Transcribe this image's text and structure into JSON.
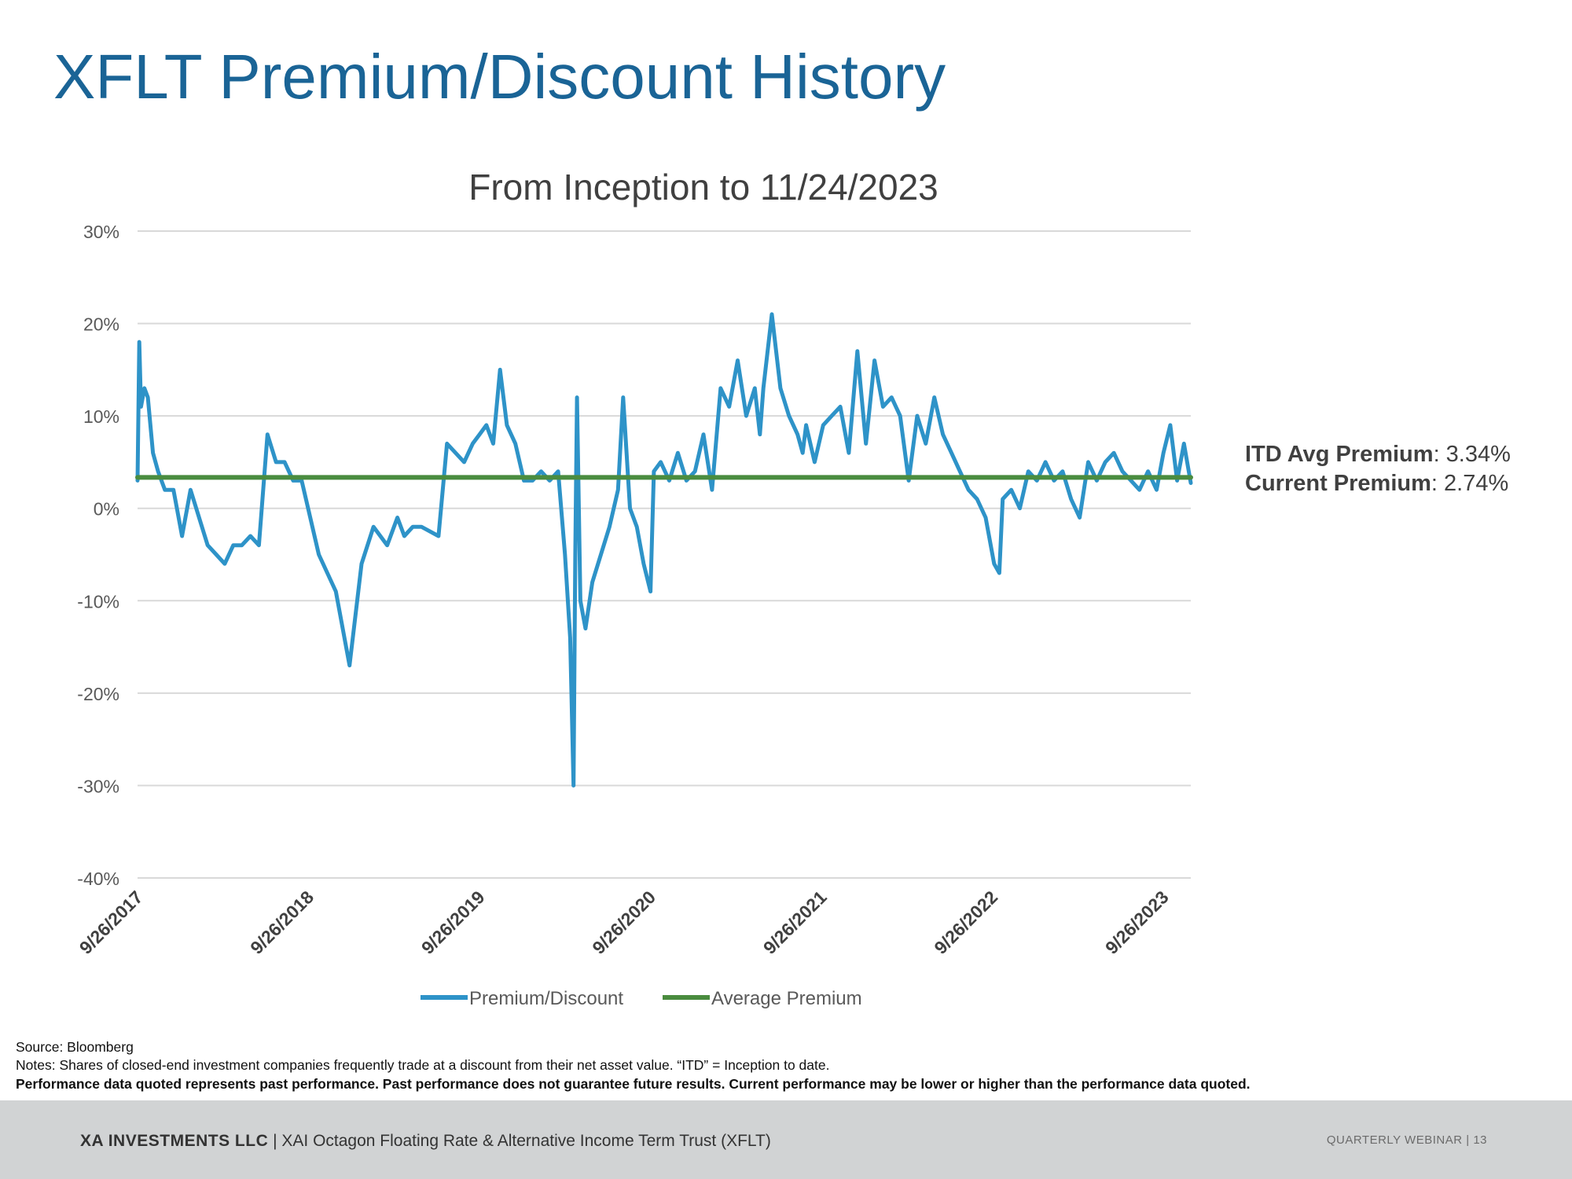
{
  "slide": {
    "title": "XFLT Premium/Discount History"
  },
  "summary": {
    "avg_label": "ITD Avg Premium",
    "avg_value": ": 3.34%",
    "current_label": "Current Premium",
    "current_value": ": 2.74%"
  },
  "notes": {
    "source": "Source: Bloomberg",
    "notes": "Notes: Shares of closed-end investment companies frequently trade at a discount from their net asset value. “ITD” = Inception to date.",
    "performance": "Performance data quoted represents past performance. Past performance does not guarantee future results. Current performance may be lower or higher than the performance data quoted."
  },
  "footer": {
    "company": "XA INVESTMENTS LLC",
    "separator": "|",
    "fund": "XAI Octagon Floating Rate & Alternative Income Term Trust (XFLT)",
    "webinar": "QUARTERLY WEBINAR",
    "page_separator": "|",
    "page": "13"
  },
  "chart_data": {
    "type": "line",
    "title": "From Inception to 11/24/2023",
    "xlabel": "",
    "ylabel": "",
    "x_range": [
      2017.74,
      2023.9
    ],
    "ylim": [
      -40,
      30
    ],
    "y_ticks": [
      30,
      20,
      10,
      0,
      -10,
      -20,
      -30,
      -40
    ],
    "y_tick_labels": [
      "30%",
      "20%",
      "10%",
      "0%",
      "-10%",
      "-20%",
      "-30%",
      "-40%"
    ],
    "x_ticks": [
      2017.74,
      2018.74,
      2019.74,
      2020.74,
      2021.74,
      2022.74,
      2023.74
    ],
    "x_tick_labels": [
      "9/26/2017",
      "9/26/2018",
      "9/26/2019",
      "9/26/2020",
      "9/26/2021",
      "9/26/2022",
      "9/26/2023"
    ],
    "grid": true,
    "legend_position": "bottom-center",
    "series": [
      {
        "name": "Premium/Discount",
        "color": "#2e93c8",
        "x": [
          2017.74,
          2017.75,
          2017.76,
          2017.78,
          2017.8,
          2017.83,
          2017.86,
          2017.9,
          2017.95,
          2018.0,
          2018.05,
          2018.1,
          2018.15,
          2018.2,
          2018.25,
          2018.3,
          2018.35,
          2018.4,
          2018.45,
          2018.5,
          2018.55,
          2018.6,
          2018.65,
          2018.7,
          2018.8,
          2018.9,
          2018.98,
          2019.05,
          2019.12,
          2019.2,
          2019.26,
          2019.3,
          2019.35,
          2019.4,
          2019.5,
          2019.55,
          2019.6,
          2019.65,
          2019.7,
          2019.74,
          2019.78,
          2019.82,
          2019.86,
          2019.9,
          2019.95,
          2020.0,
          2020.05,
          2020.1,
          2020.15,
          2020.2,
          2020.24,
          2020.27,
          2020.29,
          2020.3,
          2020.31,
          2020.33,
          2020.36,
          2020.4,
          2020.45,
          2020.5,
          2020.55,
          2020.58,
          2020.62,
          2020.66,
          2020.7,
          2020.74,
          2020.76,
          2020.8,
          2020.85,
          2020.9,
          2020.95,
          2021.0,
          2021.05,
          2021.1,
          2021.15,
          2021.2,
          2021.25,
          2021.3,
          2021.35,
          2021.38,
          2021.4,
          2021.45,
          2021.5,
          2021.55,
          2021.6,
          2021.63,
          2021.65,
          2021.7,
          2021.75,
          2021.8,
          2021.85,
          2021.9,
          2021.95,
          2022.0,
          2022.05,
          2022.1,
          2022.15,
          2022.2,
          2022.25,
          2022.3,
          2022.35,
          2022.4,
          2022.45,
          2022.5,
          2022.55,
          2022.6,
          2022.65,
          2022.7,
          2022.75,
          2022.78,
          2022.8,
          2022.85,
          2022.9,
          2022.95,
          2023.0,
          2023.05,
          2023.1,
          2023.15,
          2023.2,
          2023.25,
          2023.3,
          2023.35,
          2023.4,
          2023.45,
          2023.5,
          2023.55,
          2023.6,
          2023.65,
          2023.7,
          2023.74,
          2023.78,
          2023.82,
          2023.86,
          2023.9
        ],
        "values": [
          3,
          18,
          11,
          13,
          12,
          6,
          4,
          2,
          2,
          -3,
          2,
          -1,
          -4,
          -5,
          -6,
          -4,
          -4,
          -3,
          -4,
          8,
          5,
          5,
          3,
          3,
          -5,
          -9,
          -17,
          -6,
          -2,
          -4,
          -1,
          -3,
          -2,
          -2,
          -3,
          7,
          6,
          5,
          7,
          8,
          9,
          7,
          15,
          9,
          7,
          3,
          3,
          4,
          3,
          4,
          -5,
          -14,
          -30,
          -5,
          12,
          -10,
          -13,
          -8,
          -5,
          -2,
          2,
          12,
          0,
          -2,
          -6,
          -9,
          4,
          5,
          3,
          6,
          3,
          4,
          8,
          2,
          13,
          11,
          16,
          10,
          13,
          8,
          13,
          21,
          13,
          10,
          8,
          6,
          9,
          5,
          9,
          10,
          11,
          6,
          17,
          7,
          16,
          11,
          12,
          10,
          3,
          10,
          7,
          12,
          8,
          6,
          4,
          2,
          1,
          -1,
          -6,
          -7,
          1,
          2,
          0,
          4,
          3,
          5,
          3,
          4,
          1,
          -1,
          5,
          3,
          5,
          6,
          4,
          3,
          2,
          4,
          2,
          6,
          9,
          3,
          7,
          2.74
        ]
      },
      {
        "name": "Average Premium",
        "color": "#4a8c3f",
        "x": [
          2017.74,
          2023.9
        ],
        "values": [
          3.34,
          3.34
        ]
      }
    ]
  }
}
